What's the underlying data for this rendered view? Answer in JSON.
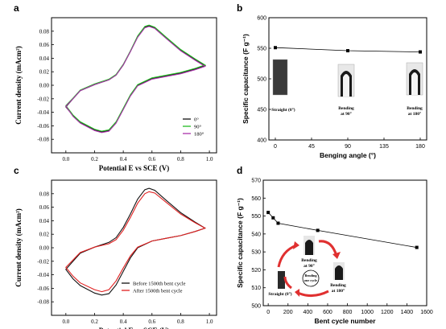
{
  "chart_data": [
    {
      "panel": "a",
      "type": "line",
      "xlabel": "Potential E vs SCE (V)",
      "ylabel": "Current density (mAcm²)",
      "xlim": [
        -0.1,
        1.05
      ],
      "ylim": [
        -0.1,
        0.1
      ],
      "xticks": [
        "0.0",
        "0.2",
        "0.4",
        "0.6",
        "0.8",
        "1.0"
      ],
      "yticks": [
        "-0.08",
        "-0.06",
        "-0.04",
        "-0.02",
        "0.00",
        "0.02",
        "0.04",
        "0.06",
        "0.08"
      ],
      "legend_position": "bottom-right",
      "series": [
        {
          "name": "0°",
          "color": "#111111",
          "upper": [
            [
              0,
              -0.032
            ],
            [
              0.05,
              -0.02
            ],
            [
              0.1,
              -0.008
            ],
            [
              0.2,
              0.001
            ],
            [
              0.3,
              0.008
            ],
            [
              0.35,
              0.015
            ],
            [
              0.4,
              0.03
            ],
            [
              0.45,
              0.05
            ],
            [
              0.5,
              0.072
            ],
            [
              0.55,
              0.086
            ],
            [
              0.58,
              0.088
            ],
            [
              0.62,
              0.085
            ],
            [
              0.7,
              0.07
            ],
            [
              0.8,
              0.052
            ],
            [
              0.9,
              0.038
            ],
            [
              0.97,
              0.029
            ]
          ],
          "lower": [
            [
              0.97,
              0.029
            ],
            [
              0.9,
              0.024
            ],
            [
              0.8,
              0.018
            ],
            [
              0.7,
              0.014
            ],
            [
              0.6,
              0.01
            ],
            [
              0.5,
              0.0
            ],
            [
              0.45,
              -0.015
            ],
            [
              0.4,
              -0.035
            ],
            [
              0.35,
              -0.055
            ],
            [
              0.3,
              -0.067
            ],
            [
              0.25,
              -0.069
            ],
            [
              0.2,
              -0.066
            ],
            [
              0.1,
              -0.055
            ],
            [
              0.05,
              -0.045
            ],
            [
              0,
              -0.032
            ]
          ]
        },
        {
          "name": "90°",
          "color": "#22bb22",
          "upper": [
            [
              0,
              -0.03
            ],
            [
              0.05,
              -0.019
            ],
            [
              0.1,
              -0.007
            ],
            [
              0.2,
              0.002
            ],
            [
              0.3,
              0.009
            ],
            [
              0.35,
              0.016
            ],
            [
              0.4,
              0.031
            ],
            [
              0.45,
              0.051
            ],
            [
              0.5,
              0.073
            ],
            [
              0.55,
              0.087
            ],
            [
              0.58,
              0.089
            ],
            [
              0.62,
              0.086
            ],
            [
              0.7,
              0.071
            ],
            [
              0.8,
              0.053
            ],
            [
              0.9,
              0.039
            ],
            [
              0.97,
              0.03
            ]
          ],
          "lower": [
            [
              0.97,
              0.03
            ],
            [
              0.9,
              0.025
            ],
            [
              0.8,
              0.019
            ],
            [
              0.7,
              0.015
            ],
            [
              0.6,
              0.011
            ],
            [
              0.5,
              0.001
            ],
            [
              0.45,
              -0.014
            ],
            [
              0.4,
              -0.034
            ],
            [
              0.35,
              -0.054
            ],
            [
              0.3,
              -0.066
            ],
            [
              0.25,
              -0.068
            ],
            [
              0.2,
              -0.065
            ],
            [
              0.1,
              -0.054
            ],
            [
              0.05,
              -0.044
            ],
            [
              0,
              -0.03
            ]
          ]
        },
        {
          "name": "180°",
          "color": "#aa33aa",
          "upper": [
            [
              0,
              -0.031
            ],
            [
              0.05,
              -0.02
            ],
            [
              0.1,
              -0.008
            ],
            [
              0.2,
              0.001
            ],
            [
              0.3,
              0.008
            ],
            [
              0.35,
              0.015
            ],
            [
              0.4,
              0.03
            ],
            [
              0.45,
              0.05
            ],
            [
              0.5,
              0.071
            ],
            [
              0.55,
              0.085
            ],
            [
              0.58,
              0.087
            ],
            [
              0.62,
              0.084
            ],
            [
              0.7,
              0.069
            ],
            [
              0.8,
              0.051
            ],
            [
              0.9,
              0.037
            ],
            [
              0.97,
              0.028
            ]
          ],
          "lower": [
            [
              0.97,
              0.028
            ],
            [
              0.9,
              0.023
            ],
            [
              0.8,
              0.017
            ],
            [
              0.7,
              0.013
            ],
            [
              0.6,
              0.009
            ],
            [
              0.5,
              -0.001
            ],
            [
              0.45,
              -0.016
            ],
            [
              0.4,
              -0.036
            ],
            [
              0.35,
              -0.056
            ],
            [
              0.3,
              -0.068
            ],
            [
              0.25,
              -0.07
            ],
            [
              0.2,
              -0.067
            ],
            [
              0.1,
              -0.056
            ],
            [
              0.05,
              -0.046
            ],
            [
              0,
              -0.031
            ]
          ]
        }
      ]
    },
    {
      "panel": "b",
      "type": "line",
      "xlabel": "Benging angle (°)",
      "ylabel": "Specific capacitance (F g⁻¹)",
      "xlim": [
        -8,
        188
      ],
      "ylim": [
        400,
        600
      ],
      "xticks": [
        "0",
        "45",
        "90",
        "135",
        "180"
      ],
      "yticks": [
        "400",
        "450",
        "500",
        "550",
        "600"
      ],
      "x": [
        0,
        90,
        180
      ],
      "values": [
        551,
        546,
        544
      ],
      "annotations": [
        "Straight (0°)",
        "Bending at 90°",
        "Bending at 180°"
      ]
    },
    {
      "panel": "c",
      "type": "line",
      "xlabel": "Potential E vs SCE (V)",
      "ylabel": "Current density (mAcm²)",
      "xlim": [
        -0.1,
        1.05
      ],
      "ylim": [
        -0.1,
        0.1
      ],
      "xticks": [
        "0.0",
        "0.2",
        "0.4",
        "0.6",
        "0.8",
        "1.0"
      ],
      "yticks": [
        "-0.08",
        "-0.06",
        "-0.04",
        "-0.02",
        "0.00",
        "0.02",
        "0.04",
        "0.06",
        "0.08"
      ],
      "legend_position": "bottom-right",
      "series": [
        {
          "name": "Before 1500th bent cycle",
          "color": "#111111",
          "upper": [
            [
              0,
              -0.032
            ],
            [
              0.05,
              -0.02
            ],
            [
              0.1,
              -0.008
            ],
            [
              0.2,
              0.001
            ],
            [
              0.3,
              0.008
            ],
            [
              0.35,
              0.015
            ],
            [
              0.4,
              0.03
            ],
            [
              0.45,
              0.05
            ],
            [
              0.5,
              0.072
            ],
            [
              0.55,
              0.086
            ],
            [
              0.58,
              0.088
            ],
            [
              0.62,
              0.085
            ],
            [
              0.7,
              0.07
            ],
            [
              0.8,
              0.052
            ],
            [
              0.9,
              0.038
            ],
            [
              0.97,
              0.029
            ]
          ],
          "lower": [
            [
              0.97,
              0.029
            ],
            [
              0.9,
              0.024
            ],
            [
              0.8,
              0.018
            ],
            [
              0.7,
              0.014
            ],
            [
              0.6,
              0.01
            ],
            [
              0.5,
              0.0
            ],
            [
              0.45,
              -0.015
            ],
            [
              0.4,
              -0.035
            ],
            [
              0.35,
              -0.055
            ],
            [
              0.3,
              -0.068
            ],
            [
              0.25,
              -0.07
            ],
            [
              0.2,
              -0.067
            ],
            [
              0.1,
              -0.056
            ],
            [
              0.05,
              -0.046
            ],
            [
              0,
              -0.032
            ]
          ]
        },
        {
          "name": "After 1500th bent cycle",
          "color": "#e02020",
          "upper": [
            [
              0,
              -0.029
            ],
            [
              0.05,
              -0.018
            ],
            [
              0.1,
              -0.007
            ],
            [
              0.2,
              0.001
            ],
            [
              0.3,
              0.006
            ],
            [
              0.35,
              0.012
            ],
            [
              0.4,
              0.026
            ],
            [
              0.45,
              0.045
            ],
            [
              0.5,
              0.066
            ],
            [
              0.55,
              0.08
            ],
            [
              0.58,
              0.083
            ],
            [
              0.62,
              0.081
            ],
            [
              0.7,
              0.067
            ],
            [
              0.8,
              0.05
            ],
            [
              0.9,
              0.037
            ],
            [
              0.97,
              0.029
            ]
          ],
          "lower": [
            [
              0.97,
              0.029
            ],
            [
              0.9,
              0.024
            ],
            [
              0.8,
              0.018
            ],
            [
              0.7,
              0.014
            ],
            [
              0.6,
              0.01
            ],
            [
              0.5,
              0.001
            ],
            [
              0.45,
              -0.012
            ],
            [
              0.4,
              -0.03
            ],
            [
              0.35,
              -0.049
            ],
            [
              0.3,
              -0.062
            ],
            [
              0.25,
              -0.065
            ],
            [
              0.2,
              -0.062
            ],
            [
              0.1,
              -0.052
            ],
            [
              0.05,
              -0.042
            ],
            [
              0,
              -0.029
            ]
          ]
        }
      ]
    },
    {
      "panel": "d",
      "type": "line",
      "xlabel": "Bent cycle number",
      "ylabel": "Specific capacitance (F g⁻¹)",
      "xlim": [
        -50,
        1600
      ],
      "ylim": [
        500,
        570
      ],
      "xticks": [
        "0",
        "200",
        "400",
        "600",
        "800",
        "1000",
        "1200",
        "1400",
        "1600"
      ],
      "yticks": [
        "500",
        "510",
        "520",
        "530",
        "540",
        "550",
        "560",
        "570"
      ],
      "x": [
        0,
        50,
        100,
        500,
        1500
      ],
      "values": [
        552,
        549,
        546,
        542,
        532.5
      ],
      "annotations": [
        "Bending at 90°",
        "Bending one cycle",
        "Bending at 180°",
        "Straight (0°)"
      ]
    }
  ],
  "colors": {
    "axis": "#000000",
    "cv_black": "#111111",
    "cv_green": "#22bb22",
    "cv_purple": "#aa33aa",
    "cv_red": "#e02020",
    "arrow_red": "#e03030"
  },
  "labels": {
    "a": "a",
    "b": "b",
    "c": "c",
    "d": "d"
  }
}
